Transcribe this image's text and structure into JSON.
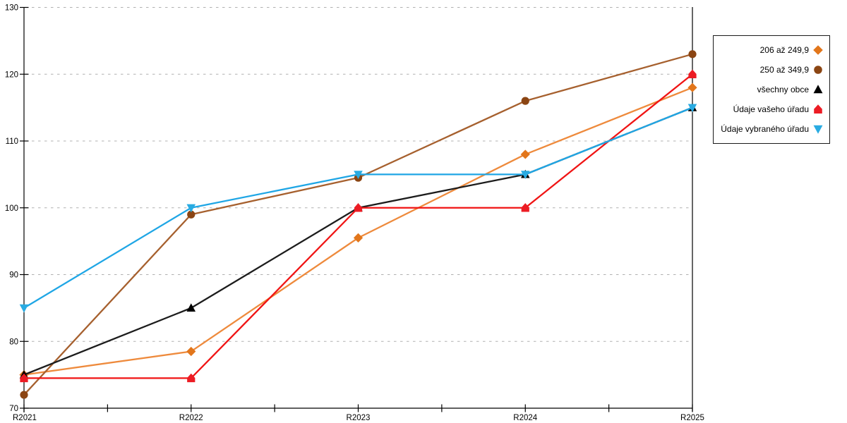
{
  "chart_data": {
    "type": "line",
    "title": "",
    "xlabel": "",
    "ylabel": "",
    "categories": [
      "R2021",
      "R2022",
      "R2023",
      "R2024",
      "R2025"
    ],
    "series": [
      {
        "name": "206 až 249,9",
        "marker": "diamond",
        "color": "#E2761B",
        "line_color": "#EE8A3C",
        "values": [
          75,
          78.5,
          95.5,
          108,
          118
        ]
      },
      {
        "name": "250 až 349,9",
        "marker": "circle",
        "color": "#8B4513",
        "line_color": "#A6602E",
        "values": [
          72,
          99,
          104.5,
          116,
          123
        ]
      },
      {
        "name": "všechny obce",
        "marker": "triangle-up",
        "color": "#000000",
        "line_color": "#1C1C1C",
        "values": [
          75,
          85,
          100,
          105,
          115
        ]
      },
      {
        "name": "Údaje vašeho úřadu",
        "marker": "pentagon",
        "color": "#EC1C24",
        "line_color": "#F01414",
        "values": [
          74.5,
          74.5,
          100,
          100,
          120
        ]
      },
      {
        "name": "Údaje vybraného úřadu",
        "marker": "triangle-down",
        "color": "#29ABE2",
        "line_color": "#1FA6E5",
        "values": [
          85,
          100,
          105,
          105,
          115
        ]
      }
    ],
    "ylim": [
      70,
      130
    ],
    "y_ticks": [
      70,
      80,
      90,
      100,
      110,
      120,
      130
    ],
    "x_minor_ticks": "midpoints-between-categories",
    "grid": "horizontal-dashed",
    "legend_position": "right-box"
  },
  "colors": {
    "background": "#FFFFFF",
    "axis": "#000000",
    "grid": "#B0B0B0",
    "tick_label": "#000000",
    "legend_border": "#1A1A1A"
  }
}
